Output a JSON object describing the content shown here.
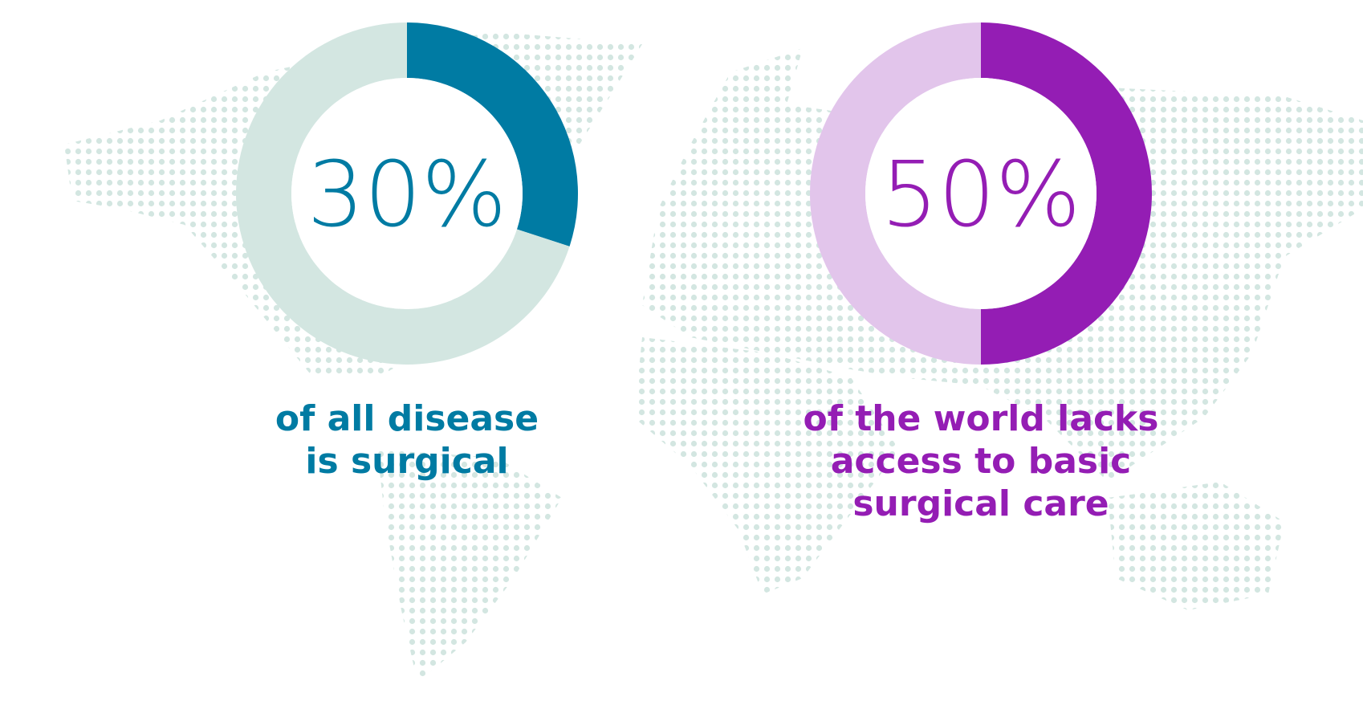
{
  "chart_data": [
    {
      "type": "donut",
      "values": [
        30,
        70
      ],
      "value_labels": [
        "30%",
        null
      ],
      "colors": [
        "#007ba3",
        "#d3e6e1"
      ],
      "text_color": "#007ba3",
      "caption": [
        "of all disease",
        "is surgical"
      ]
    },
    {
      "type": "donut",
      "values": [
        50,
        50
      ],
      "value_labels": [
        "50%",
        null
      ],
      "colors": [
        "#941db4",
        "#e2c5eb"
      ],
      "text_color": "#941db4",
      "caption": [
        "of the world lacks",
        "access to basic",
        "surgical care"
      ]
    }
  ]
}
